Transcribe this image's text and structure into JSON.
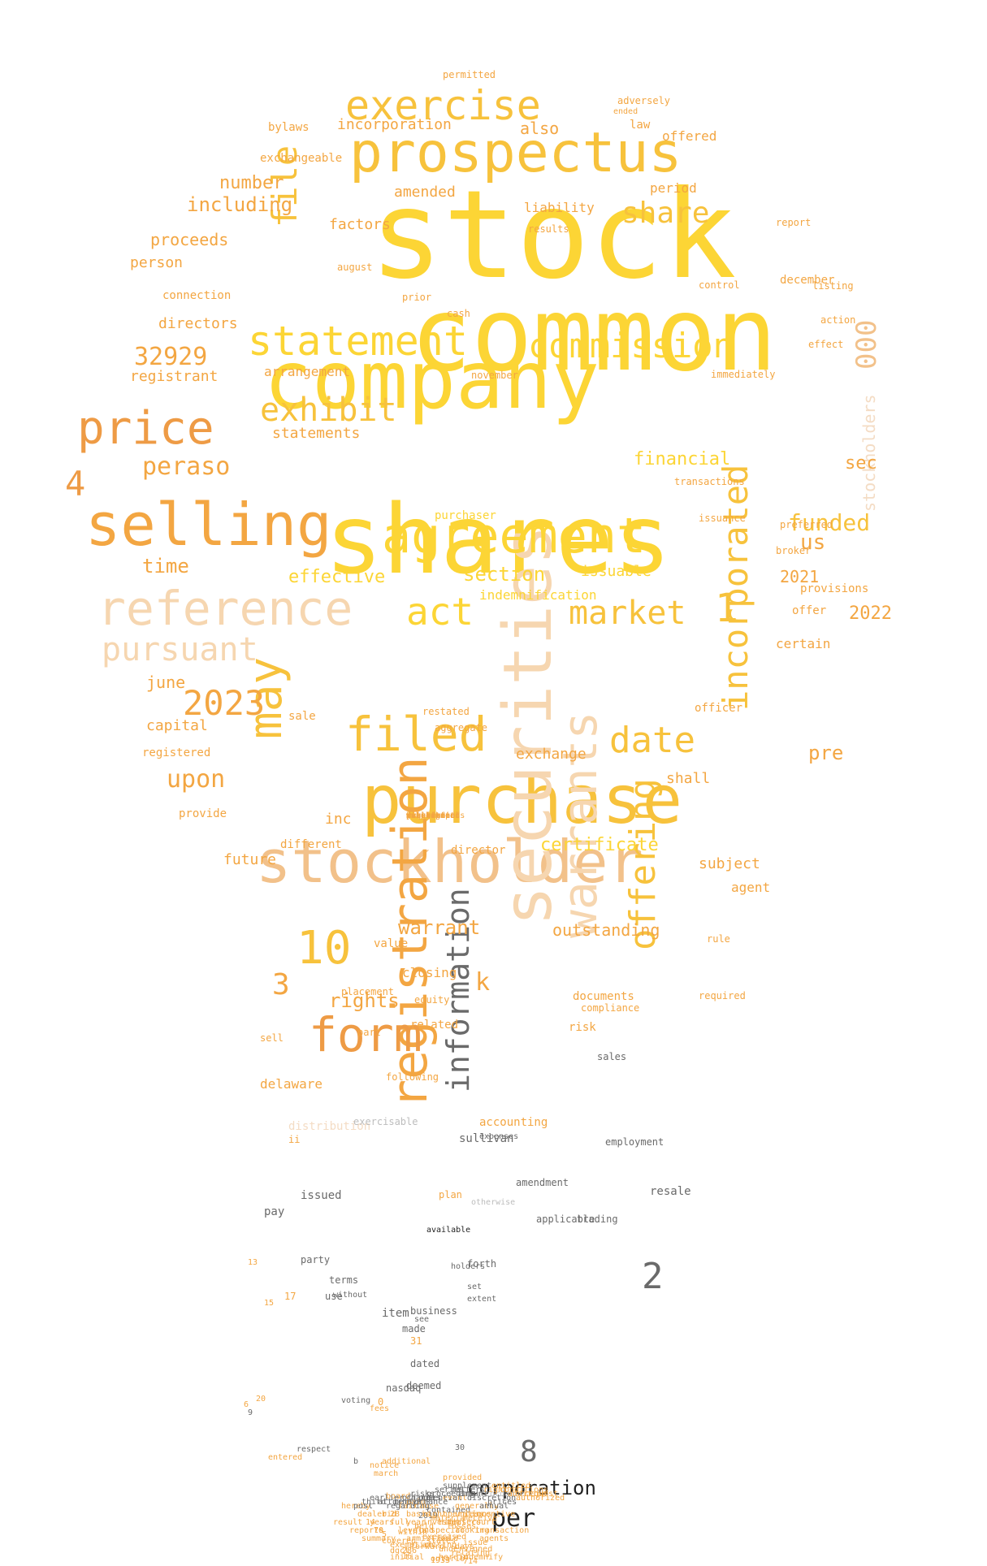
{
  "palette": {
    "bright_yellow": "#fcd535",
    "gold": "#f7c23c",
    "amber": "#f3a642",
    "orange": "#ee9b45",
    "peach": "#f2c18a",
    "pale_peach": "#f6d6b0",
    "light_peach": "#f4dcc4",
    "gray": "#6a6a6a",
    "light_gray": "#bdbdbd",
    "dark": "#222222"
  },
  "words": [
    {
      "text": "stock",
      "c": "bright_yellow"
    },
    {
      "text": "common",
      "c": "bright_yellow"
    },
    {
      "text": "shares",
      "c": "bright_yellow"
    },
    {
      "text": "company",
      "c": "bright_yellow"
    },
    {
      "text": "prospectus",
      "c": "gold"
    },
    {
      "text": "purchase",
      "c": "gold"
    },
    {
      "text": "stockholder",
      "c": "peach"
    },
    {
      "text": "securities",
      "c": "pale_peach"
    },
    {
      "text": "selling",
      "c": "amber"
    },
    {
      "text": "agreement",
      "c": "bright_yellow"
    },
    {
      "text": "reference",
      "c": "pale_peach"
    },
    {
      "text": "registration",
      "c": "amber"
    },
    {
      "text": "warrants",
      "c": "pale_peach"
    },
    {
      "text": "exercise",
      "c": "gold"
    },
    {
      "text": "statement",
      "c": "bright_yellow"
    },
    {
      "text": "commission",
      "c": "bright_yellow"
    },
    {
      "text": "price",
      "c": "orange"
    },
    {
      "text": "filed",
      "c": "gold"
    },
    {
      "text": "may",
      "c": "gold"
    },
    {
      "text": "form",
      "c": "orange"
    },
    {
      "text": "incorporated",
      "c": "gold"
    },
    {
      "text": "offering",
      "c": "gold"
    },
    {
      "text": "information",
      "c": "gray"
    },
    {
      "text": "pursuant",
      "c": "pale_peach"
    },
    {
      "text": "exhibit",
      "c": "gold"
    },
    {
      "text": "market",
      "c": "gold"
    },
    {
      "text": "file",
      "c": "gold"
    },
    {
      "text": "share",
      "c": "gold"
    },
    {
      "text": "act",
      "c": "bright_yellow"
    },
    {
      "text": "date",
      "c": "gold"
    },
    {
      "text": "10",
      "c": "gold"
    },
    {
      "text": "2023",
      "c": "amber"
    },
    {
      "text": "peraso",
      "c": "amber"
    },
    {
      "text": "32929",
      "c": "amber"
    },
    {
      "text": "000",
      "c": "peach"
    },
    {
      "text": "stockholders",
      "c": "light_peach"
    },
    {
      "text": "funded",
      "c": "gold"
    },
    {
      "text": "1",
      "c": "gold"
    },
    {
      "text": "2",
      "c": "gray"
    },
    {
      "text": "8",
      "c": "gray"
    },
    {
      "text": "4",
      "c": "orange"
    },
    {
      "text": "3",
      "c": "amber"
    },
    {
      "text": "k",
      "c": "amber"
    },
    {
      "text": "upon",
      "c": "amber"
    },
    {
      "text": "corporation",
      "c": "dark"
    },
    {
      "text": "per",
      "c": "dark"
    },
    {
      "text": "warrant",
      "c": "amber"
    },
    {
      "text": "rights",
      "c": "amber"
    },
    {
      "text": "section",
      "c": "bright_yellow"
    },
    {
      "text": "pre",
      "c": "amber"
    },
    {
      "text": "sec",
      "c": "amber"
    },
    {
      "text": "us",
      "c": "amber"
    },
    {
      "text": "financial",
      "c": "bright_yellow"
    },
    {
      "text": "certificate",
      "c": "bright_yellow"
    },
    {
      "text": "time",
      "c": "amber"
    },
    {
      "text": "effective",
      "c": "bright_yellow"
    },
    {
      "text": "2022",
      "c": "amber"
    },
    {
      "text": "2021",
      "c": "amber"
    },
    {
      "text": "including",
      "c": "amber"
    },
    {
      "text": "number",
      "c": "amber"
    },
    {
      "text": "proceeds",
      "c": "amber"
    },
    {
      "text": "person",
      "c": "amber"
    },
    {
      "text": "directors",
      "c": "amber"
    },
    {
      "text": "registrant",
      "c": "amber"
    },
    {
      "text": "statements",
      "c": "amber"
    },
    {
      "text": "arrangement",
      "c": "amber"
    },
    {
      "text": "incorporation",
      "c": "amber"
    },
    {
      "text": "also",
      "c": "amber"
    },
    {
      "text": "amended",
      "c": "amber"
    },
    {
      "text": "factors",
      "c": "amber"
    },
    {
      "text": "bylaws",
      "c": "amber"
    },
    {
      "text": "exchangeable",
      "c": "amber"
    },
    {
      "text": "liability",
      "c": "amber"
    },
    {
      "text": "period",
      "c": "amber"
    },
    {
      "text": "offered",
      "c": "amber"
    },
    {
      "text": "law",
      "c": "amber"
    },
    {
      "text": "issuable",
      "c": "bright_yellow"
    },
    {
      "text": "indemnification",
      "c": "bright_yellow"
    },
    {
      "text": "exchange",
      "c": "amber"
    },
    {
      "text": "shall",
      "c": "amber"
    },
    {
      "text": "inc",
      "c": "amber"
    },
    {
      "text": "future",
      "c": "amber"
    },
    {
      "text": "subject",
      "c": "amber"
    },
    {
      "text": "agent",
      "c": "amber"
    },
    {
      "text": "outstanding",
      "c": "amber"
    },
    {
      "text": "capital",
      "c": "amber"
    },
    {
      "text": "june",
      "c": "amber"
    },
    {
      "text": "registered",
      "c": "amber"
    },
    {
      "text": "sale",
      "c": "amber"
    },
    {
      "text": "provide",
      "c": "amber"
    },
    {
      "text": "different",
      "c": "amber"
    },
    {
      "text": "director",
      "c": "amber"
    },
    {
      "text": "officer",
      "c": "amber"
    },
    {
      "text": "restated",
      "c": "amber"
    },
    {
      "text": "aggregate",
      "c": "amber"
    },
    {
      "text": "certain",
      "c": "amber"
    },
    {
      "text": "offer",
      "c": "amber"
    },
    {
      "text": "provisions",
      "c": "amber"
    },
    {
      "text": "preferred",
      "c": "amber"
    },
    {
      "text": "broker",
      "c": "amber"
    },
    {
      "text": "issuance",
      "c": "amber"
    },
    {
      "text": "transactions",
      "c": "amber"
    },
    {
      "text": "december",
      "c": "amber"
    },
    {
      "text": "effect",
      "c": "amber"
    },
    {
      "text": "action",
      "c": "amber"
    },
    {
      "text": "listing",
      "c": "amber"
    },
    {
      "text": "report",
      "c": "amber"
    },
    {
      "text": "control",
      "c": "amber"
    },
    {
      "text": "immediately",
      "c": "amber"
    },
    {
      "text": "november",
      "c": "amber"
    },
    {
      "text": "connection",
      "c": "amber"
    },
    {
      "text": "august",
      "c": "amber"
    },
    {
      "text": "cash",
      "c": "amber"
    },
    {
      "text": "prior",
      "c": "amber"
    },
    {
      "text": "results",
      "c": "amber"
    },
    {
      "text": "adversely",
      "c": "amber"
    },
    {
      "text": "permitted",
      "c": "amber"
    },
    {
      "text": "ended",
      "c": "amber"
    },
    {
      "text": "purchaser",
      "c": "bright_yellow"
    },
    {
      "text": "closing",
      "c": "amber"
    },
    {
      "text": "equity",
      "c": "amber"
    },
    {
      "text": "documents",
      "c": "amber"
    },
    {
      "text": "risk",
      "c": "amber"
    },
    {
      "text": "compliance",
      "c": "amber"
    },
    {
      "text": "required",
      "c": "amber"
    },
    {
      "text": "rule",
      "c": "amber"
    },
    {
      "text": "value",
      "c": "amber"
    },
    {
      "text": "placement",
      "c": "amber"
    },
    {
      "text": "part",
      "c": "amber"
    },
    {
      "text": "sell",
      "c": "amber"
    },
    {
      "text": "delaware",
      "c": "amber"
    },
    {
      "text": "related",
      "c": "amber"
    },
    {
      "text": "following",
      "c": "amber"
    },
    {
      "text": "distribution",
      "c": "light_peach"
    },
    {
      "text": "accounting",
      "c": "amber"
    },
    {
      "text": "ii",
      "c": "amber"
    },
    {
      "text": "expenses",
      "c": "gray"
    },
    {
      "text": "plan",
      "c": "amber"
    },
    {
      "text": "otherwise",
      "c": "light_gray"
    },
    {
      "text": "sullivan",
      "c": "gray"
    },
    {
      "text": "trading",
      "c": "gray"
    },
    {
      "text": "employment",
      "c": "gray"
    },
    {
      "text": "amendment",
      "c": "gray"
    },
    {
      "text": "issued",
      "c": "gray"
    },
    {
      "text": "applicable",
      "c": "gray"
    },
    {
      "text": "sales",
      "c": "gray"
    },
    {
      "text": "exercisable",
      "c": "light_gray"
    },
    {
      "text": "resale",
      "c": "gray"
    },
    {
      "text": "business",
      "c": "gray"
    },
    {
      "text": "made",
      "c": "gray"
    },
    {
      "text": "dated",
      "c": "gray"
    },
    {
      "text": "nasdaq",
      "c": "gray"
    },
    {
      "text": "deemed",
      "c": "gray"
    },
    {
      "text": "use",
      "c": "gray"
    },
    {
      "text": "voting",
      "c": "gray"
    },
    {
      "text": "respect",
      "c": "gray"
    },
    {
      "text": "forth",
      "c": "gray"
    },
    {
      "text": "set",
      "c": "gray"
    },
    {
      "text": "item",
      "c": "gray"
    },
    {
      "text": "terms",
      "c": "gray"
    },
    {
      "text": "without",
      "c": "gray"
    },
    {
      "text": "available",
      "c": "dark"
    },
    {
      "text": "holders",
      "c": "gray"
    },
    {
      "text": "extent",
      "c": "gray"
    },
    {
      "text": "see",
      "c": "gray"
    },
    {
      "text": "party",
      "c": "gray"
    },
    {
      "text": "pay",
      "c": "gray"
    },
    {
      "text": "13",
      "c": "amber"
    },
    {
      "text": "17",
      "c": "amber"
    },
    {
      "text": "15",
      "c": "amber"
    },
    {
      "text": "31",
      "c": "amber"
    },
    {
      "text": "0",
      "c": "amber"
    },
    {
      "text": "20",
      "c": "amber"
    },
    {
      "text": "6",
      "c": "amber"
    },
    {
      "text": "9",
      "c": "gray"
    },
    {
      "text": "30",
      "c": "gray"
    },
    {
      "text": "provided",
      "c": "amber"
    },
    {
      "text": "march",
      "c": "amber"
    },
    {
      "text": "notice",
      "c": "amber"
    },
    {
      "text": "additional",
      "c": "amber"
    },
    {
      "text": "entered",
      "c": "amber"
    },
    {
      "text": "fees",
      "c": "amber"
    },
    {
      "text": "change",
      "c": "gray"
    },
    {
      "text": "contained",
      "c": "gray"
    },
    {
      "text": "2019",
      "c": "gray"
    },
    {
      "text": "b",
      "c": "gray"
    },
    {
      "text": "years",
      "c": "amber"
    },
    {
      "text": "within",
      "c": "amber"
    },
    {
      "text": "exercised",
      "c": "amber"
    },
    {
      "text": "states",
      "c": "amber"
    },
    {
      "text": "arising",
      "c": "amber"
    },
    {
      "text": "undersigned",
      "c": "amber"
    },
    {
      "text": "relating",
      "c": "amber"
    },
    {
      "text": "indemnify",
      "c": "amber"
    },
    {
      "text": "714",
      "c": "amber"
    },
    {
      "text": "286",
      "c": "amber"
    },
    {
      "text": "16",
      "c": "amber"
    },
    {
      "text": "forward",
      "c": "amber"
    },
    {
      "text": "1933",
      "c": "amber"
    },
    {
      "text": "dgcl",
      "c": "amber"
    },
    {
      "text": "result",
      "c": "amber"
    },
    {
      "text": "reports",
      "c": "amber"
    },
    {
      "text": "summary",
      "c": "amber"
    },
    {
      "text": "court",
      "c": "amber"
    },
    {
      "text": "transaction",
      "c": "amber"
    },
    {
      "text": "agents",
      "c": "amber"
    },
    {
      "text": "covered",
      "c": "amber"
    },
    {
      "text": "exemption",
      "c": "amber"
    },
    {
      "text": "levels",
      "c": "amber"
    },
    {
      "text": "armistice",
      "c": "amber"
    },
    {
      "text": "special",
      "c": "amber"
    },
    {
      "text": "sold",
      "c": "amber"
    },
    {
      "text": "dealers",
      "c": "amber"
    },
    {
      "text": "looking",
      "c": "amber"
    },
    {
      "text": "issue",
      "c": "amber"
    },
    {
      "text": "ontario",
      "c": "amber"
    },
    {
      "text": "herein",
      "c": "amber"
    },
    {
      "text": "initial",
      "c": "amber"
    },
    {
      "text": "days",
      "c": "amber"
    },
    {
      "text": "operations",
      "c": "amber"
    },
    {
      "text": "board",
      "c": "amber"
    },
    {
      "text": "hereby",
      "c": "amber"
    },
    {
      "text": "event",
      "c": "amber"
    },
    {
      "text": "generally",
      "c": "amber"
    },
    {
      "text": "basis",
      "c": "amber"
    },
    {
      "text": "full",
      "c": "amber"
    },
    {
      "text": "bid",
      "c": "amber"
    },
    {
      "text": "year",
      "c": "amber"
    },
    {
      "text": "held",
      "c": "amber"
    },
    {
      "text": "investors",
      "c": "amber"
    },
    {
      "text": "fund",
      "c": "amber"
    },
    {
      "text": "dealer",
      "c": "amber"
    },
    {
      "text": "14",
      "c": "amber"
    },
    {
      "text": "70",
      "c": "amber"
    },
    {
      "text": "5",
      "c": "amber"
    },
    {
      "text": "28",
      "c": "amber"
    },
    {
      "text": "fair",
      "c": "amber"
    },
    {
      "text": "paid",
      "c": "amber"
    },
    {
      "text": "cause",
      "c": "amber"
    },
    {
      "text": "night",
      "c": "amber"
    },
    {
      "text": "material",
      "c": "amber"
    },
    {
      "text": "high",
      "c": "amber"
    },
    {
      "text": "losses",
      "c": "amber"
    },
    {
      "text": "unless",
      "c": "amber"
    },
    {
      "text": "receive",
      "c": "amber"
    },
    {
      "text": "incentive",
      "c": "amber"
    },
    {
      "text": "annual",
      "c": "gray"
    },
    {
      "text": "prices",
      "c": "gray"
    },
    {
      "text": "post",
      "c": "gray"
    },
    {
      "text": "third",
      "c": "gray"
    },
    {
      "text": "earlier",
      "c": "gray"
    },
    {
      "text": "attorneys",
      "c": "gray"
    },
    {
      "text": "regarding",
      "c": "gray"
    },
    {
      "text": "performance",
      "c": "gray"
    },
    {
      "text": "officers",
      "c": "gray"
    },
    {
      "text": "risks",
      "c": "gray"
    },
    {
      "text": "potential",
      "c": "gray"
    },
    {
      "text": "proceeding",
      "c": "gray"
    },
    {
      "text": "series",
      "c": "gray"
    },
    {
      "text": "supplement",
      "c": "gray"
    },
    {
      "text": "matters",
      "c": "gray"
    },
    {
      "text": "amount",
      "c": "gray"
    },
    {
      "text": "discretion",
      "c": "gray"
    },
    {
      "text": "accordance",
      "c": "light_gray"
    },
    {
      "text": "right",
      "c": "amber"
    },
    {
      "text": "entitled",
      "c": "amber"
    },
    {
      "text": "conditions",
      "c": "amber"
    },
    {
      "text": "addition",
      "c": "amber"
    },
    {
      "text": "authorized",
      "c": "amber"
    },
    {
      "text": "request",
      "c": "amber"
    },
    {
      "text": "james",
      "c": "amber"
    },
    {
      "text": "description",
      "c": "amber"
    },
    {
      "text": "website",
      "c": "amber"
    },
    {
      "text": "management",
      "c": "amber"
    },
    {
      "text": "restricted",
      "c": "amber"
    },
    {
      "text": "amounts",
      "c": "amber"
    },
    {
      "text": "substantial",
      "c": "amber"
    },
    {
      "text": "accelerated",
      "c": "amber"
    },
    {
      "text": "included",
      "c": "amber"
    },
    {
      "text": "public",
      "c": "amber"
    },
    {
      "text": "dilution",
      "c": "amber"
    },
    {
      "text": "requirements",
      "c": "amber"
    },
    {
      "text": "complete",
      "c": "amber"
    },
    {
      "text": "purpose",
      "c": "amber"
    },
    {
      "text": "settlement",
      "c": "amber"
    },
    {
      "text": "writing",
      "c": "amber"
    },
    {
      "text": "state",
      "c": "amber"
    },
    {
      "text": "months",
      "c": "amber"
    },
    {
      "text": "net",
      "c": "amber"
    },
    {
      "text": "ownership",
      "c": "amber"
    },
    {
      "text": "behalf",
      "c": "amber"
    }
  ]
}
